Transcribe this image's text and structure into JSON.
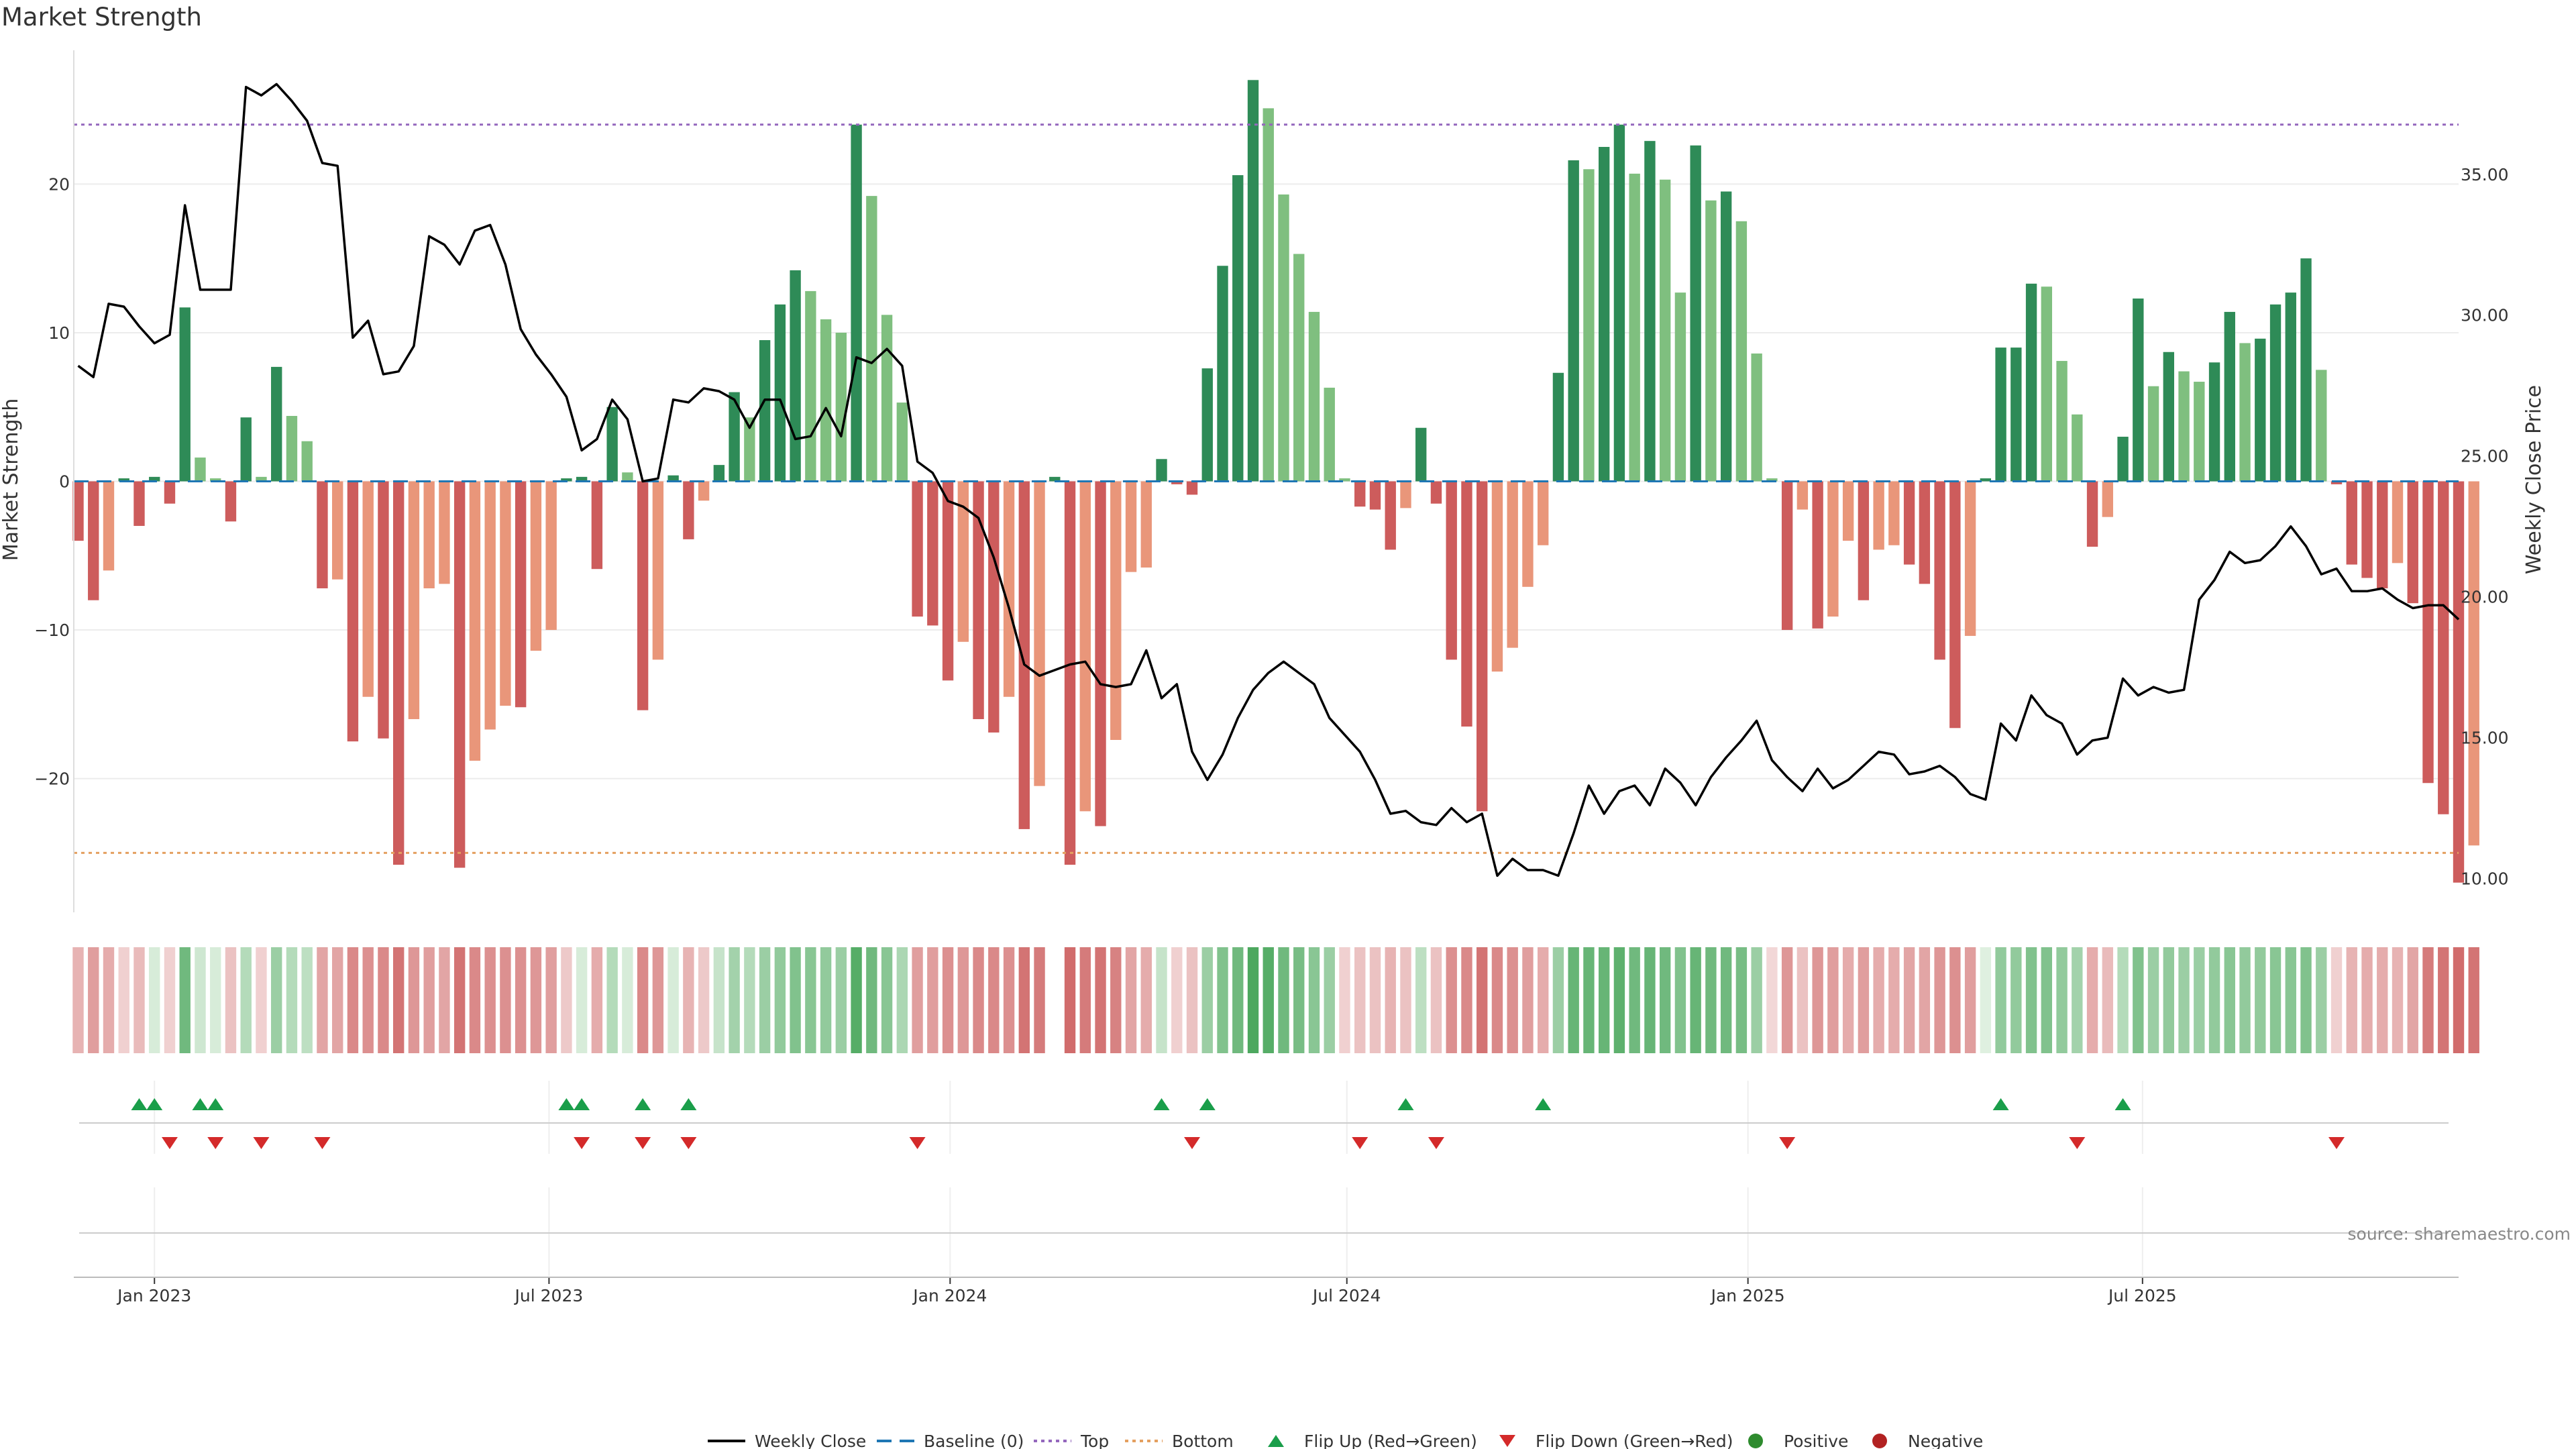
{
  "title": "Market Strength",
  "source": "source: sharemaestro.com",
  "colors": {
    "pos_dark": "#2e8b57",
    "pos_light": "#7fbf7f",
    "neg_dark": "#cd5c5c",
    "neg_light": "#e9967a",
    "price": "#000000",
    "baseline": "#1f77b4",
    "top": "#9467bd",
    "bottom": "#e4a060",
    "flip_up": "#1a9e4a",
    "flip_down": "#d42a2a",
    "positive": "#2e8b2e",
    "negative": "#b22222"
  },
  "chart_data": {
    "type": "bar",
    "title": "Market Strength",
    "ylabel": "Market Strength",
    "y2label": "Weekly Close Price",
    "ylim": [
      -29,
      29
    ],
    "y2lim": [
      8.8,
      39.4
    ],
    "yticks": [
      20,
      10,
      0,
      -10,
      -20
    ],
    "ytick_labels": [
      "20",
      "10",
      "0",
      "−10",
      "−20"
    ],
    "y2ticks": [
      35,
      30,
      25,
      20,
      15,
      10
    ],
    "y2tick_labels": [
      "35.00",
      "30.00",
      "25.00",
      "20.00",
      "15.00",
      "10.00"
    ],
    "top_level": 24,
    "bottom_level": -25,
    "x_start": "2022-11-25",
    "x_end": "2025-11-23",
    "xticks": [
      {
        "label": "Jan 2023",
        "date": "2023-01-01"
      },
      {
        "label": "Jul 2023",
        "date": "2023-07-01"
      },
      {
        "label": "Jan 2024",
        "date": "2024-01-01"
      },
      {
        "label": "Jul 2024",
        "date": "2024-07-01"
      },
      {
        "label": "Jan 2025",
        "date": "2025-01-01"
      },
      {
        "label": "Jul 2025",
        "date": "2025-07-01"
      }
    ],
    "first_week": "2022-11-27",
    "strength": [
      -4,
      -8,
      -6,
      0.2,
      -3,
      0.3,
      -1.5,
      11.7,
      1.6,
      0.2,
      -2.7,
      4.3,
      0.3,
      7.7,
      4.4,
      2.7,
      -7.2,
      -6.6,
      -17.5,
      -14.5,
      -17.3,
      -25.8,
      -16,
      -7.2,
      -6.9,
      -26,
      -18.8,
      -16.7,
      -15.1,
      -15.2,
      -11.4,
      -10,
      0.2,
      0.3,
      -5.9,
      5,
      0.6,
      -15.4,
      -12,
      0.4,
      -3.9,
      -1.3,
      1.1,
      6,
      4.3,
      9.5,
      11.9,
      14.2,
      12.8,
      10.9,
      10,
      24,
      19.2,
      11.2,
      5.3,
      -9.1,
      -9.7,
      -13.4,
      -10.8,
      -16,
      -16.9,
      -14.5,
      -23.4,
      -20.5,
      0.3,
      -25.8,
      -22.2,
      -23.2,
      -17.4,
      -6.1,
      -5.8,
      1.5,
      -0.2,
      -0.9,
      7.6,
      14.5,
      20.6,
      27,
      25.1,
      19.3,
      15.3,
      11.4,
      6.3,
      0.2,
      -1.7,
      -1.9,
      -4.6,
      -1.8,
      3.6,
      -1.5,
      -12,
      -16.5,
      -22.2,
      -12.8,
      -11.2,
      -7.1,
      -4.3,
      7.3,
      21.6,
      21,
      22.5,
      24,
      20.7,
      22.9,
      20.3,
      12.7,
      22.6,
      18.9,
      19.5,
      17.5,
      8.6,
      0.2,
      -10,
      -1.9,
      -9.9,
      -9.1,
      -4,
      -8,
      -4.6,
      -4.3,
      -5.6,
      -6.9,
      -12,
      -16.6,
      -10.4,
      0.2,
      9,
      9,
      13.3,
      13.1,
      8.1,
      4.5,
      -4.4,
      -2.4,
      3,
      12.3,
      6.4,
      8.7,
      7.4,
      6.7,
      8,
      11.4,
      9.3,
      9.6,
      11.9,
      12.7,
      15,
      7.5,
      -0.2,
      -5.6,
      -6.5,
      -7.2,
      -5.5,
      -8.2,
      -20.3,
      -22.4,
      -27,
      -24.5
    ],
    "price": [
      28.2,
      27.8,
      30.4,
      30.3,
      29.6,
      29,
      29.3,
      33.9,
      30.9,
      30.9,
      30.9,
      38.1,
      37.8,
      38.2,
      37.6,
      36.9,
      35.4,
      35.3,
      29.2,
      29.8,
      27.9,
      28,
      28.9,
      32.8,
      32.5,
      31.8,
      33,
      33.2,
      31.8,
      29.5,
      28.6,
      27.9,
      27.1,
      25.2,
      25.6,
      27,
      26.3,
      24.1,
      24.2,
      27,
      26.9,
      27.4,
      27.3,
      27,
      26,
      27,
      27,
      25.6,
      25.7,
      26.7,
      25.7,
      28.5,
      28.3,
      28.8,
      28.2,
      24.8,
      24.4,
      23.4,
      23.2,
      22.8,
      21.4,
      19.6,
      17.6,
      17.2,
      17.4,
      17.6,
      17.7,
      16.9,
      16.8,
      16.9,
      18.1,
      16.4,
      16.9,
      14.5,
      13.5,
      14.4,
      15.7,
      16.7,
      17.3,
      17.7,
      17.3,
      16.9,
      15.7,
      15.1,
      14.5,
      13.5,
      12.3,
      12.4,
      12,
      11.9,
      12.5,
      12,
      12.3,
      10.1,
      10.7,
      10.3,
      10.3,
      10.1,
      11.6,
      13.3,
      12.3,
      13.1,
      13.3,
      12.6,
      13.9,
      13.4,
      12.6,
      13.6,
      14.3,
      14.9,
      15.6,
      14.2,
      13.6,
      13.1,
      13.9,
      13.2,
      13.5,
      14,
      14.5,
      14.4,
      13.7,
      13.8,
      14,
      13.6,
      13,
      12.8,
      15.5,
      14.9,
      16.5,
      15.8,
      15.5,
      14.4,
      14.9,
      15,
      17.1,
      16.5,
      16.8,
      16.6,
      16.7,
      19.9,
      20.6,
      21.6,
      21.2,
      21.3,
      21.8,
      22.5,
      21.8,
      20.8,
      21,
      20.2,
      20.2,
      20.3,
      19.9,
      19.6,
      19.7,
      19.7,
      19.2
    ],
    "heat": [
      -0.3,
      -0.45,
      -0.35,
      -0.1,
      -0.25,
      0.1,
      -0.1,
      0.7,
      0.15,
      0.1,
      -0.2,
      0.3,
      -0.1,
      0.45,
      0.3,
      0.25,
      -0.4,
      -0.4,
      -0.6,
      -0.55,
      -0.6,
      -0.75,
      -0.5,
      -0.45,
      -0.4,
      -0.75,
      -0.6,
      -0.55,
      -0.55,
      -0.55,
      -0.5,
      -0.45,
      -0.15,
      0.1,
      -0.35,
      0.3,
      0.1,
      -0.6,
      -0.5,
      0.1,
      -0.3,
      -0.15,
      0.2,
      0.4,
      0.3,
      0.45,
      0.5,
      0.6,
      0.55,
      0.5,
      0.45,
      0.85,
      0.7,
      0.55,
      0.35,
      -0.45,
      -0.45,
      -0.55,
      -0.5,
      -0.6,
      -0.6,
      -0.55,
      -0.75,
      -0.7,
      0,
      -0.8,
      -0.7,
      -0.75,
      -0.65,
      -0.4,
      -0.35,
      0.2,
      -0.1,
      -0.2,
      0.45,
      0.6,
      0.7,
      0.9,
      0.85,
      0.7,
      0.65,
      0.55,
      0.45,
      -0.1,
      -0.2,
      -0.2,
      -0.3,
      -0.2,
      0.25,
      -0.2,
      -0.55,
      -0.6,
      -0.75,
      -0.6,
      -0.55,
      -0.45,
      -0.35,
      0.45,
      0.75,
      0.75,
      0.75,
      0.8,
      0.7,
      0.75,
      0.7,
      0.6,
      0.75,
      0.7,
      0.7,
      0.65,
      0.45,
      -0.05,
      -0.5,
      -0.2,
      -0.5,
      -0.45,
      -0.35,
      -0.45,
      -0.35,
      -0.35,
      -0.4,
      -0.4,
      -0.5,
      -0.55,
      -0.45,
      0.05,
      0.5,
      0.5,
      0.6,
      0.6,
      0.5,
      0.4,
      -0.35,
      -0.25,
      0.3,
      0.6,
      0.45,
      0.5,
      0.45,
      0.45,
      0.5,
      0.55,
      0.5,
      0.5,
      0.55,
      0.55,
      0.6,
      0.45,
      -0.1,
      -0.3,
      -0.35,
      -0.35,
      -0.3,
      -0.4,
      -0.7,
      -0.75,
      -0.8,
      -0.75
    ],
    "flip_up": [
      4,
      5,
      8,
      9,
      32,
      33,
      37,
      40,
      71,
      74,
      87,
      96,
      126,
      134
    ],
    "flip_down": [
      6,
      9,
      12,
      16,
      33,
      37,
      40,
      55,
      73,
      84,
      89,
      112,
      131,
      148
    ]
  },
  "legend": [
    {
      "label": "Weekly Close",
      "kind": "line"
    },
    {
      "label": "Baseline (0)",
      "kind": "dash"
    },
    {
      "label": "Top",
      "kind": "dot-purple"
    },
    {
      "label": "Bottom",
      "kind": "dot-orange"
    },
    {
      "label": "Flip Up (Red→Green)",
      "kind": "tri-up"
    },
    {
      "label": "Flip Down (Green→Red)",
      "kind": "tri-down"
    },
    {
      "label": "Positive",
      "kind": "dot-green"
    },
    {
      "label": "Negative",
      "kind": "dot-red"
    }
  ]
}
